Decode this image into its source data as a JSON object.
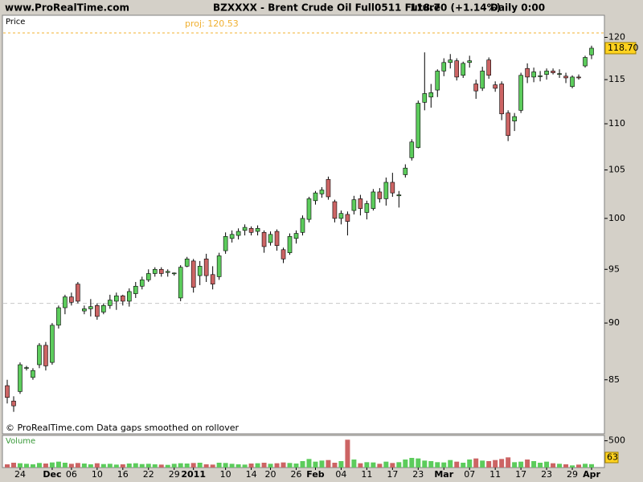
{
  "header": {
    "site": "www.ProRealTime.com",
    "instrument": "BZXXXX - Brent Crude Oil Full0511 Future",
    "quote": "118.70 (+1.14%)",
    "period": "Daily  0:00"
  },
  "chart_data": {
    "type": "candlestick",
    "log_scale": true,
    "price_label": "Price",
    "volume_label": "Volume",
    "footnote": "© ProRealTime.com  Data gaps smoothed on rollover",
    "up_color": "#5ccc5c",
    "down_color": "#cc6464",
    "ylim": [
      80.5,
      122.7
    ],
    "yticks": [
      85,
      90,
      95,
      100,
      105,
      110,
      115,
      120
    ],
    "last_price": {
      "value": 118.7,
      "label": "118.70"
    },
    "proj_line": {
      "value": 120.53,
      "label": "proj: 120.53",
      "color": "#f0b030"
    },
    "ref_line": {
      "value": 91.8,
      "color": "#c8c8c8"
    },
    "categories": [
      null,
      null,
      "24",
      null,
      null,
      null,
      null,
      "Dec",
      null,
      null,
      "06",
      null,
      null,
      null,
      "10",
      null,
      null,
      null,
      "16",
      null,
      null,
      null,
      "22",
      null,
      null,
      null,
      "29",
      null,
      null,
      "2011",
      null,
      null,
      null,
      null,
      "10",
      null,
      null,
      null,
      "14",
      null,
      null,
      "20",
      null,
      null,
      null,
      "26",
      null,
      null,
      "Feb",
      null,
      null,
      null,
      "04",
      null,
      null,
      null,
      "11",
      null,
      null,
      null,
      "17",
      null,
      null,
      null,
      "23",
      null,
      null,
      null,
      "Mar",
      null,
      null,
      null,
      "07",
      null,
      null,
      null,
      "11",
      null,
      null,
      null,
      "17",
      null,
      null,
      null,
      "23",
      null,
      null,
      null,
      "29",
      null,
      null,
      "Apr"
    ],
    "candles": [
      {
        "open": 84.5,
        "high": 85,
        "low": 83,
        "close": 83.5
      },
      {
        "open": 83.2,
        "high": 83.6,
        "low": 82.3,
        "close": 82.8
      },
      {
        "open": 84,
        "high": 86.5,
        "low": 83.8,
        "close": 86.3
      },
      {
        "open": 86,
        "high": 86.2,
        "low": 85.8,
        "close": 86.05
      },
      {
        "open": 85.2,
        "high": 86,
        "low": 85,
        "close": 85.8
      },
      {
        "open": 86.3,
        "high": 88.2,
        "low": 86,
        "close": 88
      },
      {
        "open": 88,
        "high": 88.3,
        "low": 85.8,
        "close": 86.2
      },
      {
        "open": 86.5,
        "high": 90,
        "low": 86.3,
        "close": 89.8
      },
      {
        "open": 89.8,
        "high": 91.6,
        "low": 89.5,
        "close": 91.4
      },
      {
        "open": 91.4,
        "high": 92.6,
        "low": 90.8,
        "close": 92.4
      },
      {
        "open": 92.4,
        "high": 92.8,
        "low": 91.6,
        "close": 91.9
      },
      {
        "open": 93.6,
        "high": 93.8,
        "low": 91.8,
        "close": 92
      },
      {
        "open": 91.1,
        "high": 91.6,
        "low": 90.8,
        "close": 91.3
      },
      {
        "open": 91.3,
        "high": 92.2,
        "low": 90.6,
        "close": 91.5
      },
      {
        "open": 91.6,
        "high": 91.8,
        "low": 90.3,
        "close": 90.6
      },
      {
        "open": 91,
        "high": 91.8,
        "low": 90.8,
        "close": 91.6
      },
      {
        "open": 91.6,
        "high": 92.6,
        "low": 91.3,
        "close": 92.1
      },
      {
        "open": 92,
        "high": 92.8,
        "low": 91.2,
        "close": 92.5
      },
      {
        "open": 92.5,
        "high": 92.6,
        "low": 91.6,
        "close": 92
      },
      {
        "open": 92,
        "high": 93.2,
        "low": 91.5,
        "close": 92.9
      },
      {
        "open": 92.7,
        "high": 93.8,
        "low": 92.3,
        "close": 93.4
      },
      {
        "open": 93.4,
        "high": 94.3,
        "low": 93.1,
        "close": 94
      },
      {
        "open": 94,
        "high": 95,
        "low": 93.8,
        "close": 94.6
      },
      {
        "open": 94.6,
        "high": 95.2,
        "low": 94.3,
        "close": 95
      },
      {
        "open": 95,
        "high": 95.2,
        "low": 94.3,
        "close": 94.6
      },
      {
        "open": 94.7,
        "high": 95,
        "low": 94.3,
        "close": 94.8
      },
      {
        "open": 94.6,
        "high": 94.7,
        "low": 94.4,
        "close": 94.65
      },
      {
        "open": 92.3,
        "high": 95.4,
        "low": 92,
        "close": 95.2
      },
      {
        "open": 95.3,
        "high": 96.2,
        "low": 95.2,
        "close": 96
      },
      {
        "open": 95.8,
        "high": 96,
        "low": 92.8,
        "close": 93.3
      },
      {
        "open": 94.4,
        "high": 95.8,
        "low": 93.5,
        "close": 95.3
      },
      {
        "open": 96,
        "high": 96.5,
        "low": 93.8,
        "close": 94.4
      },
      {
        "open": 94.5,
        "high": 95.3,
        "low": 93.1,
        "close": 93.6
      },
      {
        "open": 94.3,
        "high": 96.6,
        "low": 94,
        "close": 96.3
      },
      {
        "open": 96.8,
        "high": 98.6,
        "low": 96.5,
        "close": 98.2
      },
      {
        "open": 98,
        "high": 98.8,
        "low": 97.6,
        "close": 98.4
      },
      {
        "open": 98.3,
        "high": 99,
        "low": 97.9,
        "close": 98.7
      },
      {
        "open": 98.8,
        "high": 99.4,
        "low": 98.3,
        "close": 99.1
      },
      {
        "open": 99,
        "high": 99.2,
        "low": 98.3,
        "close": 98.6
      },
      {
        "open": 98.7,
        "high": 99.3,
        "low": 98.3,
        "close": 99
      },
      {
        "open": 98.6,
        "high": 98.8,
        "low": 96.6,
        "close": 97.2
      },
      {
        "open": 97.6,
        "high": 98.7,
        "low": 97.3,
        "close": 98.4
      },
      {
        "open": 98.7,
        "high": 98.9,
        "low": 96.8,
        "close": 97.3
      },
      {
        "open": 96.9,
        "high": 97.1,
        "low": 95.6,
        "close": 96
      },
      {
        "open": 96.6,
        "high": 98.5,
        "low": 96.4,
        "close": 98.2
      },
      {
        "open": 98,
        "high": 98.8,
        "low": 97.5,
        "close": 98.5
      },
      {
        "open": 98.6,
        "high": 100.3,
        "low": 98.3,
        "close": 100
      },
      {
        "open": 99.9,
        "high": 102.2,
        "low": 99.6,
        "close": 102
      },
      {
        "open": 101.8,
        "high": 102.8,
        "low": 101.4,
        "close": 102.6
      },
      {
        "open": 102.5,
        "high": 103.2,
        "low": 102.1,
        "close": 102.9
      },
      {
        "open": 104,
        "high": 104.3,
        "low": 101.9,
        "close": 102.2
      },
      {
        "open": 101.7,
        "high": 101.9,
        "low": 99.6,
        "close": 100
      },
      {
        "open": 100,
        "high": 100.8,
        "low": 99.4,
        "close": 100.5
      },
      {
        "open": 100.4,
        "high": 100.7,
        "low": 98.3,
        "close": 99.7
      },
      {
        "open": 100.8,
        "high": 102.3,
        "low": 100.4,
        "close": 101.9
      },
      {
        "open": 102,
        "high": 102.4,
        "low": 100.3,
        "close": 101
      },
      {
        "open": 100.6,
        "high": 101.8,
        "low": 99.9,
        "close": 101.5
      },
      {
        "open": 101,
        "high": 103,
        "low": 100.8,
        "close": 102.7
      },
      {
        "open": 102.7,
        "high": 103.1,
        "low": 101.6,
        "close": 102
      },
      {
        "open": 102,
        "high": 104.2,
        "low": 101.3,
        "close": 103.7
      },
      {
        "open": 103.7,
        "high": 104.7,
        "low": 102.2,
        "close": 102.6
      },
      {
        "open": 102.3,
        "high": 102.8,
        "low": 101.1,
        "close": 102.4
      },
      {
        "open": 104.5,
        "high": 105.6,
        "low": 104.2,
        "close": 105.2
      },
      {
        "open": 106.3,
        "high": 108.3,
        "low": 106,
        "close": 108
      },
      {
        "open": 107.4,
        "high": 112.6,
        "low": 107.3,
        "close": 112.3
      },
      {
        "open": 112.4,
        "high": 118.2,
        "low": 111.5,
        "close": 113.4
      },
      {
        "open": 113,
        "high": 114.5,
        "low": 111.8,
        "close": 113.5
      },
      {
        "open": 113.8,
        "high": 116.2,
        "low": 113,
        "close": 116
      },
      {
        "open": 116,
        "high": 117.5,
        "low": 115.4,
        "close": 117
      },
      {
        "open": 117,
        "high": 118,
        "low": 116.3,
        "close": 117.3
      },
      {
        "open": 117.2,
        "high": 117.5,
        "low": 114.9,
        "close": 115.3
      },
      {
        "open": 115.5,
        "high": 117.1,
        "low": 115.2,
        "close": 116.9
      },
      {
        "open": 117,
        "high": 117.8,
        "low": 116.4,
        "close": 117.2
      },
      {
        "open": 114.5,
        "high": 115,
        "low": 112.8,
        "close": 113.7
      },
      {
        "open": 114,
        "high": 116.5,
        "low": 113.7,
        "close": 116
      },
      {
        "open": 117.3,
        "high": 117.6,
        "low": 115.1,
        "close": 115.5
      },
      {
        "open": 114.4,
        "high": 114.8,
        "low": 113.6,
        "close": 114
      },
      {
        "open": 114.5,
        "high": 114.8,
        "low": 110.4,
        "close": 111.1
      },
      {
        "open": 111.2,
        "high": 111.5,
        "low": 108.1,
        "close": 108.7
      },
      {
        "open": 110.3,
        "high": 111.2,
        "low": 109.2,
        "close": 110.8
      },
      {
        "open": 111.5,
        "high": 115.8,
        "low": 111.2,
        "close": 115.5
      },
      {
        "open": 116.3,
        "high": 116.9,
        "low": 114.6,
        "close": 115.3
      },
      {
        "open": 115.3,
        "high": 116.4,
        "low": 114.7,
        "close": 115.9
      },
      {
        "open": 115.35,
        "high": 116,
        "low": 114.8,
        "close": 115.45
      },
      {
        "open": 115.6,
        "high": 116.3,
        "low": 115,
        "close": 116
      },
      {
        "open": 116,
        "high": 116.3,
        "low": 115.6,
        "close": 115.8
      },
      {
        "open": 115.6,
        "high": 116.2,
        "low": 115.2,
        "close": 115.7
      },
      {
        "open": 115.4,
        "high": 115.8,
        "low": 114.6,
        "close": 115.2
      },
      {
        "open": 114.2,
        "high": 115.5,
        "low": 114,
        "close": 115.3
      },
      {
        "open": 115.3,
        "high": 115.6,
        "low": 115,
        "close": 115.2
      },
      {
        "open": 116.6,
        "high": 117.8,
        "low": 116.4,
        "close": 117.6
      },
      {
        "open": 117.9,
        "high": 119,
        "low": 117.4,
        "close": 118.7
      }
    ],
    "volume": {
      "ylim": [
        0,
        600
      ],
      "yticks": [
        500
      ],
      "values": [
        60,
        90,
        80,
        70,
        60,
        85,
        75,
        95,
        110,
        90,
        70,
        85,
        75,
        60,
        80,
        65,
        70,
        55,
        60,
        75,
        80,
        65,
        70,
        60,
        55,
        50,
        70,
        80,
        75,
        85,
        90,
        60,
        55,
        90,
        85,
        70,
        60,
        55,
        75,
        80,
        90,
        70,
        80,
        95,
        85,
        75,
        120,
        160,
        110,
        130,
        140,
        90,
        120,
        520,
        150,
        80,
        100,
        95,
        70,
        110,
        85,
        100,
        150,
        180,
        170,
        130,
        120,
        100,
        95,
        140,
        110,
        90,
        150,
        170,
        130,
        120,
        140,
        160,
        190,
        100,
        110,
        150,
        120,
        90,
        110,
        80,
        70,
        60,
        40,
        55,
        70,
        63
      ]
    }
  }
}
